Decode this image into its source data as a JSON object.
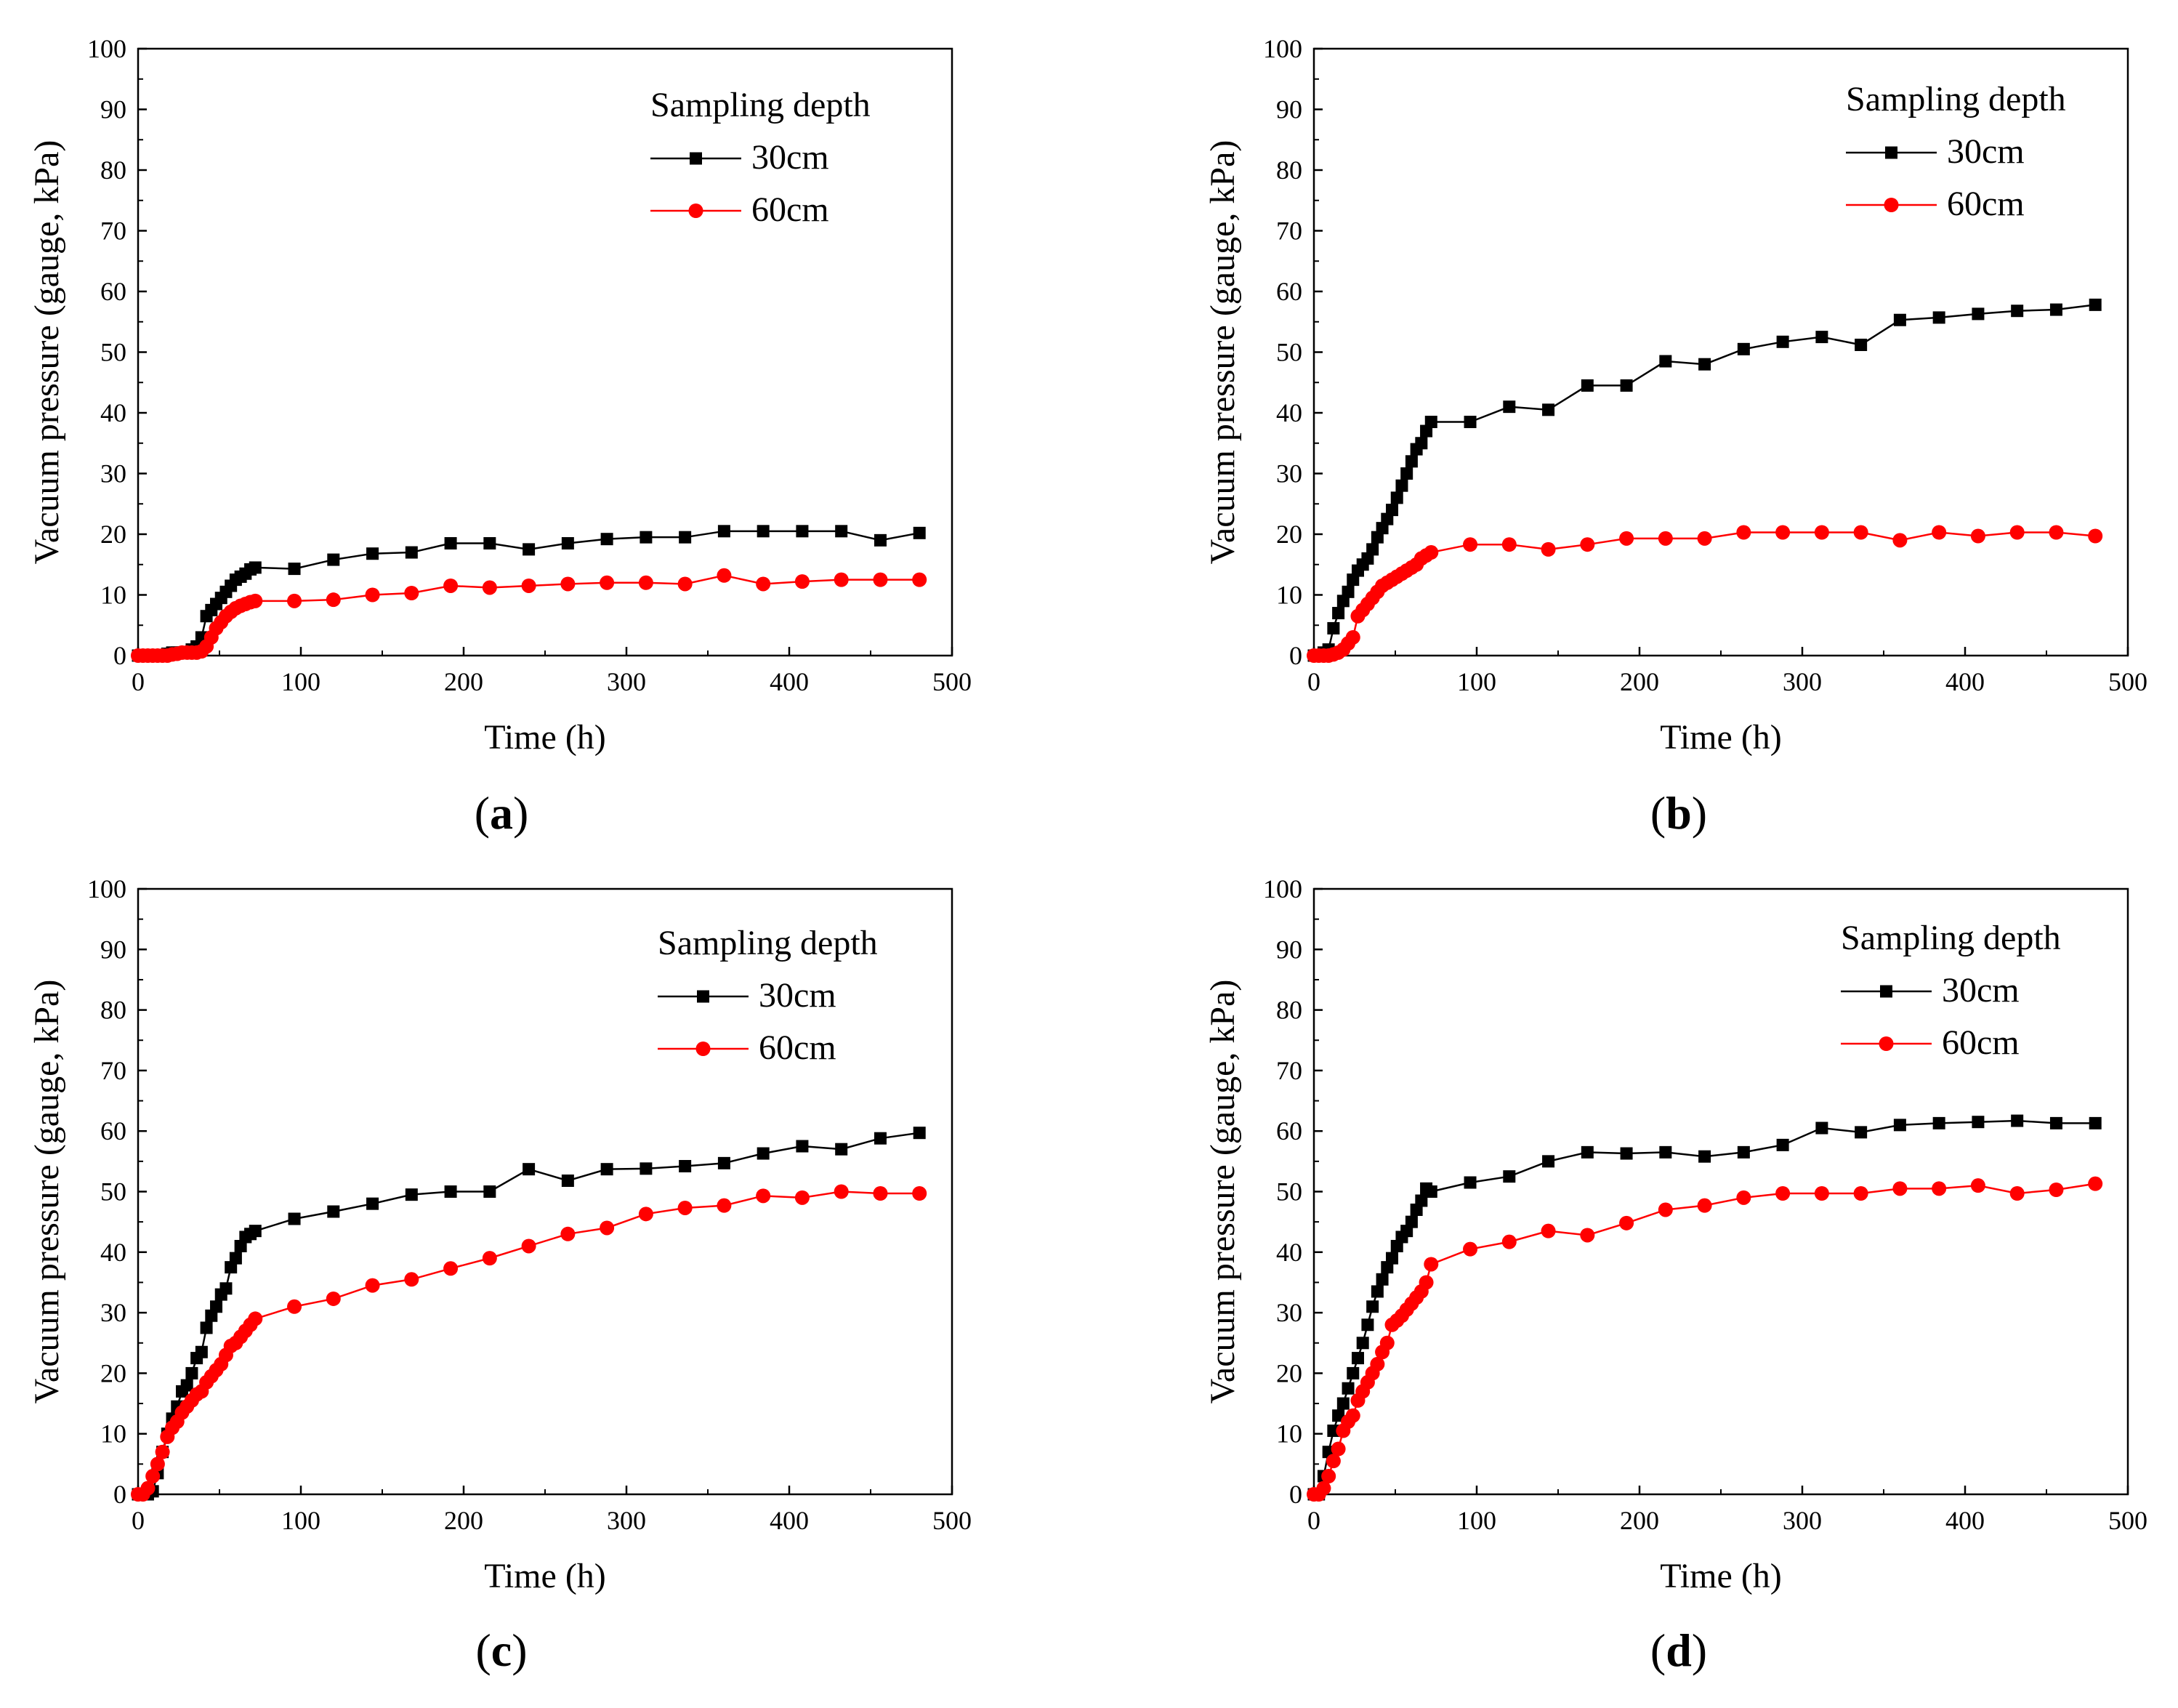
{
  "colors": {
    "series_30cm": "#000000",
    "series_60cm": "#ff0000",
    "axis": "#000000"
  },
  "chart_data": [
    {
      "type": "line",
      "panel_label": "a",
      "xlabel": "Time (h)",
      "ylabel": "Vacuum pressure (gauge, kPa)",
      "xlim": [
        0,
        500
      ],
      "ylim": [
        0,
        100
      ],
      "xticks": [
        0,
        100,
        200,
        300,
        400,
        500
      ],
      "yticks": [
        0,
        10,
        20,
        30,
        40,
        50,
        60,
        70,
        80,
        90,
        100
      ],
      "legend": {
        "title": "Sampling depth",
        "placement": "top-right"
      },
      "series": [
        {
          "name": "30cm",
          "marker": "square",
          "color": "#000000",
          "x": [
            0,
            3,
            6,
            9,
            12,
            15,
            18,
            21,
            24,
            27,
            30,
            33,
            36,
            39,
            42,
            45,
            48,
            51,
            54,
            57,
            60,
            63,
            66,
            69,
            72,
            96,
            120,
            144,
            168,
            192,
            216,
            240,
            264,
            288,
            312,
            336,
            360,
            384,
            408,
            432,
            456,
            480
          ],
          "values": [
            0,
            0,
            0,
            0,
            0,
            0,
            0.3,
            0.5,
            0.5,
            0.5,
            0.5,
            1.0,
            1.5,
            3.0,
            6.5,
            7.5,
            8.5,
            9.5,
            10.5,
            11.5,
            12.5,
            13.0,
            13.5,
            14.2,
            14.5,
            14.3,
            15.8,
            16.8,
            17.0,
            18.5,
            18.5,
            17.5,
            18.5,
            19.2,
            19.5,
            19.5,
            20.5,
            20.5,
            20.5,
            20.5,
            19.0,
            20.2
          ]
        },
        {
          "name": "60cm",
          "marker": "circle",
          "color": "#ff0000",
          "x": [
            0,
            3,
            6,
            9,
            12,
            15,
            18,
            21,
            24,
            27,
            30,
            33,
            36,
            39,
            42,
            45,
            48,
            51,
            54,
            57,
            60,
            63,
            66,
            69,
            72,
            96,
            120,
            144,
            168,
            192,
            216,
            240,
            264,
            288,
            312,
            336,
            360,
            384,
            408,
            432,
            456,
            480
          ],
          "values": [
            0,
            0,
            0,
            0,
            0,
            0,
            0,
            0.2,
            0.3,
            0.5,
            0.5,
            0.5,
            0.5,
            0.7,
            1.5,
            3.0,
            4.5,
            5.5,
            6.5,
            7.2,
            7.8,
            8.2,
            8.5,
            8.8,
            9.0,
            9.0,
            9.2,
            10.0,
            10.3,
            11.5,
            11.2,
            11.5,
            11.8,
            12.0,
            12.0,
            11.8,
            13.2,
            11.8,
            12.2,
            12.5,
            12.5,
            12.5
          ]
        }
      ]
    },
    {
      "type": "line",
      "panel_label": "b",
      "xlabel": "Time (h)",
      "ylabel": "Vacuum pressure (gauge, kPa)",
      "xlim": [
        0,
        500
      ],
      "ylim": [
        0,
        100
      ],
      "xticks": [
        0,
        100,
        200,
        300,
        400,
        500
      ],
      "yticks": [
        0,
        10,
        20,
        30,
        40,
        50,
        60,
        70,
        80,
        90,
        100
      ],
      "legend": {
        "title": "Sampling depth",
        "placement": "top-right"
      },
      "series": [
        {
          "name": "30cm",
          "marker": "square",
          "color": "#000000",
          "x": [
            0,
            3,
            6,
            9,
            12,
            15,
            18,
            21,
            24,
            27,
            30,
            33,
            36,
            39,
            42,
            45,
            48,
            51,
            54,
            57,
            60,
            63,
            66,
            69,
            72,
            96,
            120,
            144,
            168,
            192,
            216,
            240,
            264,
            288,
            312,
            336,
            360,
            384,
            408,
            432,
            456,
            480
          ],
          "values": [
            0,
            0,
            0.5,
            1.0,
            4.5,
            7.0,
            9.0,
            10.5,
            12.5,
            14.0,
            15.0,
            16.0,
            17.5,
            19.5,
            21.0,
            22.5,
            24.0,
            26.0,
            28.0,
            30.0,
            32.0,
            34.0,
            35.0,
            37.0,
            38.5,
            38.5,
            41.0,
            40.5,
            44.5,
            44.5,
            48.5,
            48.0,
            50.5,
            51.7,
            52.5,
            51.2,
            55.3,
            55.7,
            56.3,
            56.8,
            57.0,
            57.8
          ]
        },
        {
          "name": "60cm",
          "marker": "circle",
          "color": "#ff0000",
          "x": [
            0,
            3,
            6,
            9,
            12,
            15,
            18,
            21,
            24,
            27,
            30,
            33,
            36,
            39,
            42,
            45,
            48,
            51,
            54,
            57,
            60,
            63,
            66,
            69,
            72,
            96,
            120,
            144,
            168,
            192,
            216,
            240,
            264,
            288,
            312,
            336,
            360,
            384,
            408,
            432,
            456,
            480
          ],
          "values": [
            0,
            0,
            0,
            0,
            0.2,
            0.5,
            1.0,
            2.0,
            3.0,
            6.5,
            7.5,
            8.5,
            9.5,
            10.5,
            11.5,
            12.0,
            12.5,
            13.0,
            13.5,
            14.0,
            14.5,
            15.0,
            16.0,
            16.5,
            17.0,
            18.3,
            18.3,
            17.5,
            18.3,
            19.3,
            19.3,
            19.3,
            20.3,
            20.3,
            20.3,
            20.3,
            19.0,
            20.3,
            19.7,
            20.3,
            20.3,
            19.7
          ]
        }
      ]
    },
    {
      "type": "line",
      "panel_label": "c",
      "xlabel": "Time (h)",
      "ylabel": "Vacuum pressure (gauge, kPa)",
      "xlim": [
        0,
        500
      ],
      "ylim": [
        0,
        100
      ],
      "xticks": [
        0,
        100,
        200,
        300,
        400,
        500
      ],
      "yticks": [
        0,
        10,
        20,
        30,
        40,
        50,
        60,
        70,
        80,
        90,
        100
      ],
      "legend": {
        "title": "Sampling depth",
        "placement": "top-right"
      },
      "series": [
        {
          "name": "30cm",
          "marker": "square",
          "color": "#000000",
          "x": [
            0,
            3,
            6,
            9,
            12,
            15,
            18,
            21,
            24,
            27,
            30,
            33,
            36,
            39,
            42,
            45,
            48,
            51,
            54,
            57,
            60,
            63,
            66,
            69,
            72,
            96,
            120,
            144,
            168,
            192,
            216,
            240,
            264,
            288,
            312,
            336,
            360,
            384,
            408,
            432,
            456,
            480
          ],
          "values": [
            0,
            0,
            0,
            0.5,
            3.5,
            7.0,
            10.0,
            12.5,
            14.5,
            17.0,
            18.0,
            20.0,
            22.5,
            23.5,
            27.5,
            29.5,
            31.0,
            33.0,
            34.0,
            37.5,
            39.0,
            41.0,
            42.5,
            43.0,
            43.5,
            45.5,
            46.7,
            48.0,
            49.5,
            50.0,
            50.0,
            53.7,
            51.8,
            53.7,
            53.8,
            54.2,
            54.7,
            56.3,
            57.5,
            57.0,
            58.8,
            59.7
          ]
        },
        {
          "name": "60cm",
          "marker": "circle",
          "color": "#ff0000",
          "x": [
            0,
            3,
            6,
            9,
            12,
            15,
            18,
            21,
            24,
            27,
            30,
            33,
            36,
            39,
            42,
            45,
            48,
            51,
            54,
            57,
            60,
            63,
            66,
            69,
            72,
            96,
            120,
            144,
            168,
            192,
            216,
            240,
            264,
            288,
            312,
            336,
            360,
            384,
            408,
            432,
            456,
            480
          ],
          "values": [
            0,
            0,
            1.0,
            3.0,
            5.0,
            7.0,
            9.5,
            11.0,
            12.0,
            13.5,
            14.5,
            15.5,
            16.5,
            17.0,
            18.5,
            19.5,
            20.5,
            21.5,
            23.0,
            24.5,
            25.0,
            26.0,
            27.0,
            28.0,
            29.0,
            31.0,
            32.3,
            34.5,
            35.5,
            37.3,
            39.0,
            41.0,
            43.0,
            44.0,
            46.3,
            47.3,
            47.7,
            49.3,
            49.0,
            50.0,
            49.7,
            49.7
          ]
        }
      ]
    },
    {
      "type": "line",
      "panel_label": "d",
      "xlabel": "Time (h)",
      "ylabel": "Vacuum pressure (gauge, kPa)",
      "xlim": [
        0,
        500
      ],
      "ylim": [
        0,
        100
      ],
      "xticks": [
        0,
        100,
        200,
        300,
        400,
        500
      ],
      "yticks": [
        0,
        10,
        20,
        30,
        40,
        50,
        60,
        70,
        80,
        90,
        100
      ],
      "legend": {
        "title": "Sampling depth",
        "placement": "top-right"
      },
      "series": [
        {
          "name": "30cm",
          "marker": "square",
          "color": "#000000",
          "x": [
            0,
            3,
            6,
            9,
            12,
            15,
            18,
            21,
            24,
            27,
            30,
            33,
            36,
            39,
            42,
            45,
            48,
            51,
            54,
            57,
            60,
            63,
            66,
            69,
            72,
            96,
            120,
            144,
            168,
            192,
            216,
            240,
            264,
            288,
            312,
            336,
            360,
            384,
            408,
            432,
            456,
            480
          ],
          "values": [
            0,
            0,
            3.0,
            7.0,
            10.5,
            13.0,
            15.0,
            17.5,
            20.0,
            22.5,
            25.0,
            28.0,
            31.0,
            33.5,
            35.5,
            37.5,
            39.0,
            41.0,
            42.5,
            43.5,
            45.0,
            47.0,
            48.5,
            50.5,
            50.0,
            51.5,
            52.5,
            55.0,
            56.5,
            56.3,
            56.5,
            55.8,
            56.5,
            57.7,
            60.5,
            59.8,
            61.0,
            61.3,
            61.5,
            61.7,
            61.3,
            61.3
          ]
        },
        {
          "name": "60cm",
          "marker": "circle",
          "color": "#ff0000",
          "x": [
            0,
            3,
            6,
            9,
            12,
            15,
            18,
            21,
            24,
            27,
            30,
            33,
            36,
            39,
            42,
            45,
            48,
            51,
            54,
            57,
            60,
            63,
            66,
            69,
            72,
            96,
            120,
            144,
            168,
            192,
            216,
            240,
            264,
            288,
            312,
            336,
            360,
            384,
            408,
            432,
            456,
            480
          ],
          "values": [
            0,
            0,
            1.0,
            3.0,
            5.5,
            7.5,
            10.5,
            12.0,
            13.0,
            15.5,
            17.0,
            18.5,
            20.0,
            21.5,
            23.5,
            25.0,
            28.0,
            28.7,
            29.5,
            30.5,
            31.5,
            32.5,
            33.5,
            35.0,
            38.0,
            40.5,
            41.7,
            43.5,
            42.8,
            44.8,
            47.0,
            47.7,
            49.0,
            49.7,
            49.7,
            49.7,
            50.5,
            50.5,
            51.0,
            49.7,
            50.3,
            51.3
          ]
        }
      ]
    }
  ]
}
